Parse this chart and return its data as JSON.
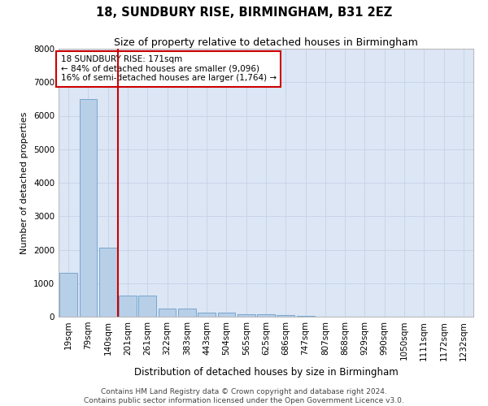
{
  "title1": "18, SUNDBURY RISE, BIRMINGHAM, B31 2EZ",
  "title2": "Size of property relative to detached houses in Birmingham",
  "xlabel": "Distribution of detached houses by size in Birmingham",
  "ylabel": "Number of detached properties",
  "footnote1": "Contains HM Land Registry data © Crown copyright and database right 2024.",
  "footnote2": "Contains public sector information licensed under the Open Government Licence v3.0.",
  "annotation_line1": "18 SUNDBURY RISE: 171sqm",
  "annotation_line2": "← 84% of detached houses are smaller (9,096)",
  "annotation_line3": "16% of semi-detached houses are larger (1,764) →",
  "bar_color": "#b8cfe8",
  "bar_edge_color": "#6a9ec8",
  "grid_color": "#c8d4e8",
  "background_color": "#dce6f5",
  "vline_color": "#cc0000",
  "vline_x": 2.5,
  "categories": [
    "19sqm",
    "79sqm",
    "140sqm",
    "201sqm",
    "261sqm",
    "322sqm",
    "383sqm",
    "443sqm",
    "504sqm",
    "565sqm",
    "625sqm",
    "686sqm",
    "747sqm",
    "807sqm",
    "868sqm",
    "929sqm",
    "990sqm",
    "1050sqm",
    "1111sqm",
    "1172sqm",
    "1232sqm"
  ],
  "values": [
    1300,
    6500,
    2050,
    620,
    620,
    250,
    250,
    130,
    130,
    80,
    80,
    40,
    20,
    10,
    10,
    5,
    5,
    3,
    2,
    2,
    2
  ],
  "ylim": [
    0,
    8000
  ],
  "yticks": [
    0,
    1000,
    2000,
    3000,
    4000,
    5000,
    6000,
    7000,
    8000
  ],
  "title1_fontsize": 10.5,
  "title2_fontsize": 9,
  "ylabel_fontsize": 8,
  "xlabel_fontsize": 8.5,
  "tick_fontsize": 7.5,
  "annot_fontsize": 7.5,
  "footnote_fontsize": 6.5
}
